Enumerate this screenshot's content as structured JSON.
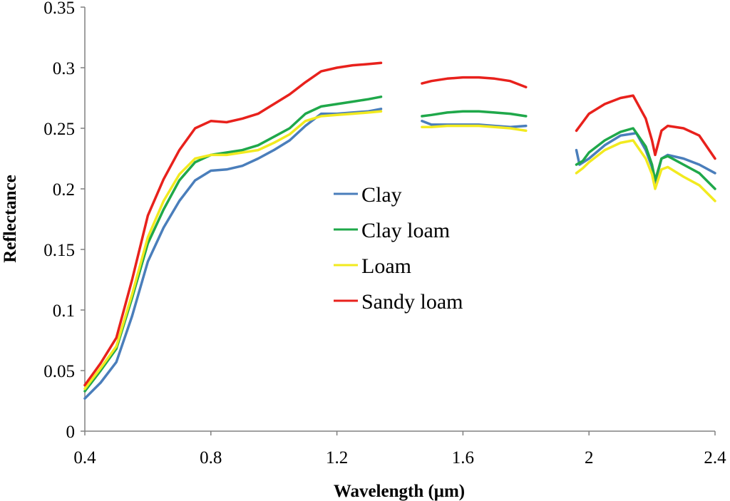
{
  "chart_data": {
    "type": "line",
    "title": "",
    "xlabel": "Wavelength (μm)",
    "ylabel": "Reflectance",
    "xlim": [
      0.4,
      2.4
    ],
    "ylim": [
      0,
      0.35
    ],
    "x_ticks": [
      "0.4",
      "0.8",
      "1.2",
      "1.6",
      "2",
      "2.4"
    ],
    "y_ticks": [
      "0",
      "0.05",
      "0.1",
      "0.15",
      "0.2",
      "0.25",
      "0.3",
      "0.35"
    ],
    "grid": false,
    "legend_position": "center",
    "series": [
      {
        "name": "Clay",
        "color": "#4a7ebb",
        "segments": [
          [
            [
              0.4,
              0.027
            ],
            [
              0.45,
              0.04
            ],
            [
              0.5,
              0.057
            ],
            [
              0.55,
              0.095
            ],
            [
              0.6,
              0.14
            ],
            [
              0.65,
              0.168
            ],
            [
              0.7,
              0.19
            ],
            [
              0.75,
              0.207
            ],
            [
              0.8,
              0.215
            ],
            [
              0.85,
              0.216
            ],
            [
              0.9,
              0.219
            ],
            [
              0.95,
              0.225
            ],
            [
              1.0,
              0.232
            ],
            [
              1.05,
              0.24
            ],
            [
              1.1,
              0.252
            ],
            [
              1.15,
              0.262
            ],
            [
              1.2,
              0.262
            ],
            [
              1.25,
              0.263
            ],
            [
              1.3,
              0.264
            ],
            [
              1.34,
              0.266
            ]
          ],
          [
            [
              1.47,
              0.256
            ],
            [
              1.5,
              0.253
            ],
            [
              1.55,
              0.253
            ],
            [
              1.6,
              0.253
            ],
            [
              1.65,
              0.253
            ],
            [
              1.7,
              0.252
            ],
            [
              1.75,
              0.251
            ],
            [
              1.8,
              0.252
            ]
          ],
          [
            [
              1.96,
              0.232
            ],
            [
              1.97,
              0.22
            ],
            [
              2.0,
              0.225
            ],
            [
              2.05,
              0.236
            ],
            [
              2.1,
              0.244
            ],
            [
              2.15,
              0.246
            ],
            [
              2.18,
              0.232
            ],
            [
              2.2,
              0.218
            ],
            [
              2.21,
              0.205
            ],
            [
              2.23,
              0.225
            ],
            [
              2.25,
              0.228
            ],
            [
              2.3,
              0.225
            ],
            [
              2.35,
              0.22
            ],
            [
              2.4,
              0.213
            ]
          ]
        ]
      },
      {
        "name": "Clay loam",
        "color": "#1fa84a",
        "segments": [
          [
            [
              0.4,
              0.033
            ],
            [
              0.45,
              0.05
            ],
            [
              0.5,
              0.068
            ],
            [
              0.55,
              0.11
            ],
            [
              0.6,
              0.155
            ],
            [
              0.65,
              0.183
            ],
            [
              0.7,
              0.207
            ],
            [
              0.75,
              0.222
            ],
            [
              0.8,
              0.228
            ],
            [
              0.85,
              0.23
            ],
            [
              0.9,
              0.232
            ],
            [
              0.95,
              0.236
            ],
            [
              1.0,
              0.243
            ],
            [
              1.05,
              0.25
            ],
            [
              1.1,
              0.262
            ],
            [
              1.15,
              0.268
            ],
            [
              1.2,
              0.27
            ],
            [
              1.25,
              0.272
            ],
            [
              1.3,
              0.274
            ],
            [
              1.34,
              0.276
            ]
          ],
          [
            [
              1.47,
              0.26
            ],
            [
              1.5,
              0.261
            ],
            [
              1.55,
              0.263
            ],
            [
              1.6,
              0.264
            ],
            [
              1.65,
              0.264
            ],
            [
              1.7,
              0.263
            ],
            [
              1.75,
              0.262
            ],
            [
              1.8,
              0.26
            ]
          ],
          [
            [
              1.96,
              0.22
            ],
            [
              1.98,
              0.223
            ],
            [
              2.0,
              0.23
            ],
            [
              2.05,
              0.24
            ],
            [
              2.1,
              0.247
            ],
            [
              2.14,
              0.25
            ],
            [
              2.18,
              0.235
            ],
            [
              2.2,
              0.22
            ],
            [
              2.21,
              0.207
            ],
            [
              2.23,
              0.225
            ],
            [
              2.25,
              0.227
            ],
            [
              2.3,
              0.22
            ],
            [
              2.35,
              0.213
            ],
            [
              2.4,
              0.2
            ]
          ]
        ]
      },
      {
        "name": "Loam",
        "color": "#f2ea1f",
        "segments": [
          [
            [
              0.4,
              0.035
            ],
            [
              0.45,
              0.052
            ],
            [
              0.5,
              0.07
            ],
            [
              0.55,
              0.113
            ],
            [
              0.6,
              0.16
            ],
            [
              0.65,
              0.19
            ],
            [
              0.7,
              0.212
            ],
            [
              0.75,
              0.225
            ],
            [
              0.8,
              0.228
            ],
            [
              0.85,
              0.228
            ],
            [
              0.9,
              0.23
            ],
            [
              0.95,
              0.232
            ],
            [
              1.0,
              0.238
            ],
            [
              1.05,
              0.245
            ],
            [
              1.1,
              0.256
            ],
            [
              1.15,
              0.26
            ],
            [
              1.2,
              0.261
            ],
            [
              1.25,
              0.262
            ],
            [
              1.3,
              0.263
            ],
            [
              1.34,
              0.264
            ]
          ],
          [
            [
              1.47,
              0.251
            ],
            [
              1.5,
              0.251
            ],
            [
              1.55,
              0.252
            ],
            [
              1.6,
              0.252
            ],
            [
              1.65,
              0.252
            ],
            [
              1.7,
              0.251
            ],
            [
              1.75,
              0.25
            ],
            [
              1.8,
              0.248
            ]
          ],
          [
            [
              1.96,
              0.213
            ],
            [
              1.98,
              0.217
            ],
            [
              2.0,
              0.222
            ],
            [
              2.05,
              0.232
            ],
            [
              2.1,
              0.238
            ],
            [
              2.14,
              0.24
            ],
            [
              2.18,
              0.225
            ],
            [
              2.2,
              0.212
            ],
            [
              2.21,
              0.2
            ],
            [
              2.23,
              0.216
            ],
            [
              2.25,
              0.218
            ],
            [
              2.3,
              0.21
            ],
            [
              2.35,
              0.203
            ],
            [
              2.4,
              0.19
            ]
          ]
        ]
      },
      {
        "name": "Sandy loam",
        "color": "#e8211c",
        "segments": [
          [
            [
              0.4,
              0.038
            ],
            [
              0.45,
              0.056
            ],
            [
              0.5,
              0.077
            ],
            [
              0.55,
              0.125
            ],
            [
              0.6,
              0.178
            ],
            [
              0.65,
              0.208
            ],
            [
              0.7,
              0.232
            ],
            [
              0.75,
              0.25
            ],
            [
              0.8,
              0.256
            ],
            [
              0.85,
              0.255
            ],
            [
              0.9,
              0.258
            ],
            [
              0.95,
              0.262
            ],
            [
              1.0,
              0.27
            ],
            [
              1.05,
              0.278
            ],
            [
              1.1,
              0.288
            ],
            [
              1.15,
              0.297
            ],
            [
              1.2,
              0.3
            ],
            [
              1.25,
              0.302
            ],
            [
              1.3,
              0.303
            ],
            [
              1.34,
              0.304
            ]
          ],
          [
            [
              1.47,
              0.287
            ],
            [
              1.5,
              0.289
            ],
            [
              1.55,
              0.291
            ],
            [
              1.6,
              0.292
            ],
            [
              1.65,
              0.292
            ],
            [
              1.7,
              0.291
            ],
            [
              1.75,
              0.289
            ],
            [
              1.8,
              0.284
            ]
          ],
          [
            [
              1.96,
              0.248
            ],
            [
              1.98,
              0.255
            ],
            [
              2.0,
              0.262
            ],
            [
              2.05,
              0.27
            ],
            [
              2.1,
              0.275
            ],
            [
              2.14,
              0.277
            ],
            [
              2.18,
              0.258
            ],
            [
              2.2,
              0.24
            ],
            [
              2.21,
              0.228
            ],
            [
              2.23,
              0.248
            ],
            [
              2.25,
              0.252
            ],
            [
              2.3,
              0.25
            ],
            [
              2.35,
              0.244
            ],
            [
              2.4,
              0.225
            ]
          ]
        ]
      }
    ]
  }
}
